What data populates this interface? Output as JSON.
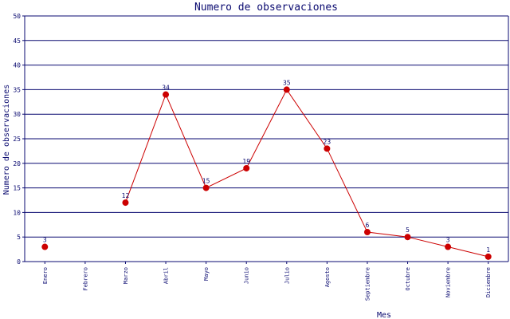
{
  "chart_data": {
    "type": "line",
    "title": "Numero de observaciones",
    "xlabel": "Mes",
    "ylabel": "Numero de observaciones",
    "categories": [
      "Enero",
      "Febrero",
      "Marzo",
      "Abril",
      "Mayo",
      "Junio",
      "Julio",
      "Agosto",
      "Septiembre",
      "Octubre",
      "Noviembre",
      "Diciembre"
    ],
    "series": [
      {
        "values": [
          3,
          null,
          12,
          34,
          15,
          19,
          35,
          23,
          6,
          5,
          3,
          1
        ]
      }
    ],
    "ylim": [
      0,
      50
    ],
    "yticks": [
      0,
      5,
      10,
      15,
      20,
      25,
      30,
      35,
      40,
      45,
      50
    ],
    "grid": true,
    "colors": {
      "line": "#cc0000",
      "text": "#0a0a70",
      "grid": "#0a0a70"
    }
  }
}
